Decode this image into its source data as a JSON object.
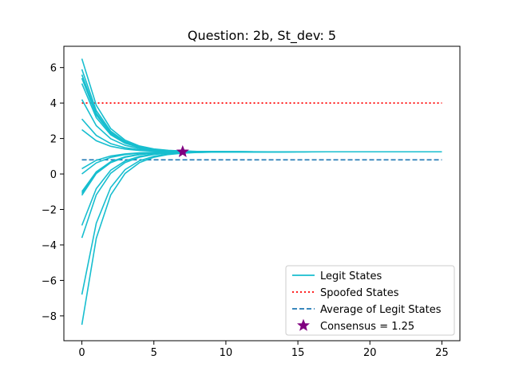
{
  "chart_data": {
    "type": "line",
    "title": "Question: 2b, St_dev: 5",
    "xlabel": "",
    "ylabel": "",
    "xlim": [
      -1.25,
      26.25
    ],
    "ylim": [
      -9.4,
      7.2
    ],
    "xticks": [
      0,
      5,
      10,
      15,
      20,
      25
    ],
    "yticks": [
      -8,
      -6,
      -4,
      -2,
      0,
      2,
      4,
      6
    ],
    "grid": false,
    "legend_position": "lower-right",
    "colors": {
      "legit": "#17becf",
      "spoofed": "#ff0000",
      "average": "#1f77b4",
      "consensus": "#800080"
    },
    "legit_initial_values": [
      6.5,
      5.9,
      5.6,
      5.4,
      5.1,
      4.2,
      3.1,
      2.5,
      0.3,
      0.0,
      -1.0,
      -1.1,
      -1.2,
      -2.9,
      -3.6,
      -6.8,
      -8.5
    ],
    "convergence_value": 1.25,
    "x_end": 25,
    "spoofed_value": 4.0,
    "average_value": 0.8,
    "consensus_point": {
      "x": 7,
      "y": 1.25
    },
    "legend": [
      {
        "label": "Legit States",
        "style": "solid"
      },
      {
        "label": "Spoofed States",
        "style": "dotted"
      },
      {
        "label": "Average of Legit States",
        "style": "dashed"
      },
      {
        "label": "Consensus = 1.25",
        "style": "star"
      }
    ]
  }
}
